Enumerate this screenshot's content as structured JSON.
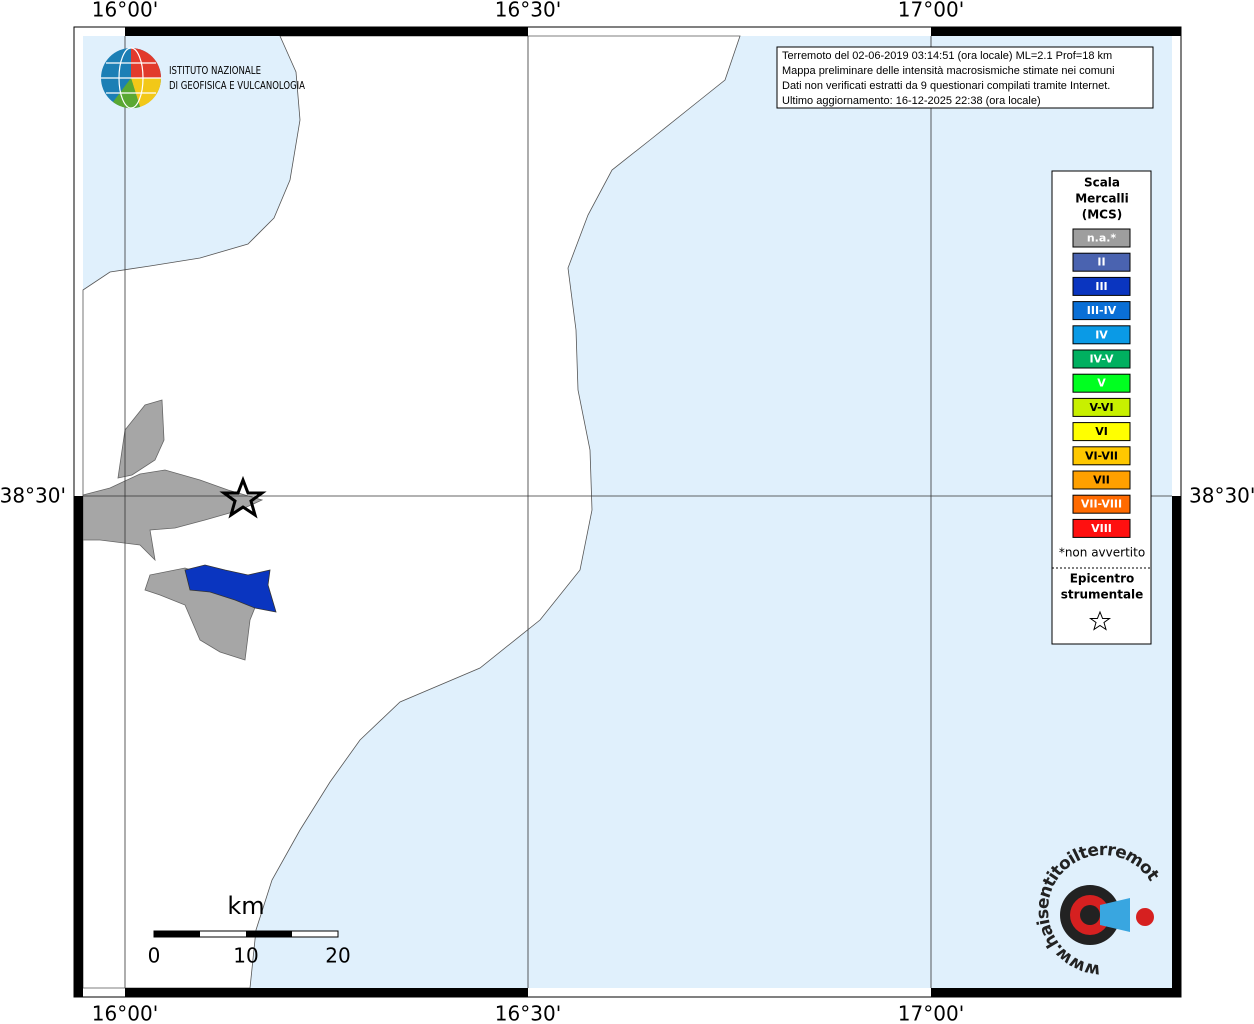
{
  "header": {
    "info": [
      "Terremoto del 02-06-2019 03:14:51 (ora locale) ML=2.1 Prof=18 km",
      "Mappa preliminare delle intensità macrosismiche stimate nei comuni",
      "Dati non verificati estratti da 9 questionari compilati tramite Internet.",
      "Ultimo aggiornamento: 16-12-2025 22:38 (ora locale)"
    ]
  },
  "logo": {
    "line1": "ISTITUTO NAZIONALE",
    "line2": "DI GEOFISICA E VULCANOLOGIA"
  },
  "graticule": {
    "lon_labels": [
      "16°00'",
      "16°30'",
      "17°00'"
    ],
    "lat_labels": [
      "38°30'"
    ]
  },
  "legend": {
    "title": [
      "Scala",
      "Mercalli",
      "(MCS)"
    ],
    "items": [
      {
        "label": "n.a.*",
        "color": "#9e9e9e"
      },
      {
        "label": "II",
        "color": "#4a63b0"
      },
      {
        "label": "III",
        "color": "#0a35c0"
      },
      {
        "label": "III-IV",
        "color": "#0a6fd6"
      },
      {
        "label": "IV",
        "color": "#0a9ae6"
      },
      {
        "label": "IV-V",
        "color": "#00b060"
      },
      {
        "label": "V",
        "color": "#00ff20"
      },
      {
        "label": "V-VI",
        "color": "#c8f000"
      },
      {
        "label": "VI",
        "color": "#ffff00"
      },
      {
        "label": "VI-VII",
        "color": "#ffc800"
      },
      {
        "label": "VII",
        "color": "#ffa000"
      },
      {
        "label": "VII-VIII",
        "color": "#ff6a00"
      },
      {
        "label": "VIII",
        "color": "#ff1010"
      }
    ],
    "note": "*non avvertito",
    "epicenter": [
      "Epicentro",
      "strumentale"
    ]
  },
  "scale_bar": {
    "unit": "km",
    "labels": [
      "0",
      "10",
      "20"
    ]
  },
  "watermark": "www.haisentitoilterremoto.it"
}
